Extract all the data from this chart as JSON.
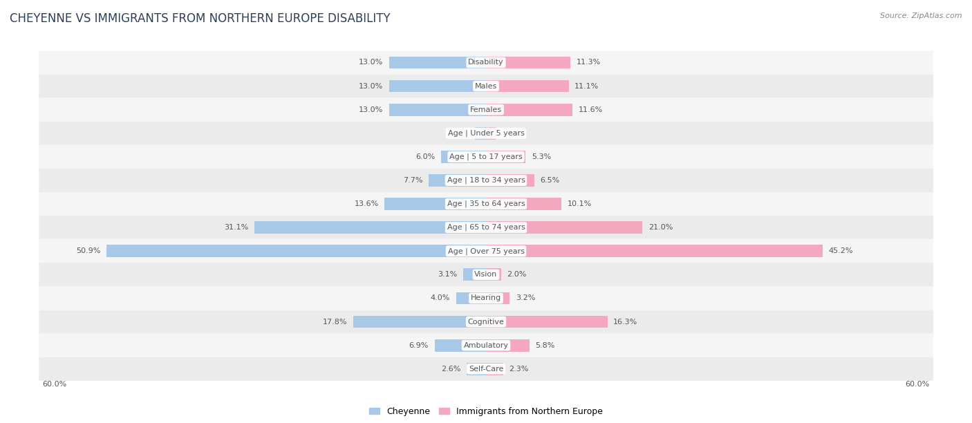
{
  "title": "CHEYENNE VS IMMIGRANTS FROM NORTHERN EUROPE DISABILITY",
  "source": "Source: ZipAtlas.com",
  "categories": [
    "Disability",
    "Males",
    "Females",
    "Age | Under 5 years",
    "Age | 5 to 17 years",
    "Age | 18 to 34 years",
    "Age | 35 to 64 years",
    "Age | 65 to 74 years",
    "Age | Over 75 years",
    "Vision",
    "Hearing",
    "Cognitive",
    "Ambulatory",
    "Self-Care"
  ],
  "cheyenne_values": [
    13.0,
    13.0,
    13.0,
    1.5,
    6.0,
    7.7,
    13.6,
    31.1,
    50.9,
    3.1,
    4.0,
    17.8,
    6.9,
    2.6
  ],
  "immigrant_values": [
    11.3,
    11.1,
    11.6,
    1.3,
    5.3,
    6.5,
    10.1,
    21.0,
    45.2,
    2.0,
    3.2,
    16.3,
    5.8,
    2.3
  ],
  "cheyenne_color": "#a8c8e8",
  "immigrant_color": "#f4a8c0",
  "bg_color": "#ffffff",
  "row_colors": [
    "#f5f5f5",
    "#ebebeb"
  ],
  "xlim": 60.0,
  "bar_height": 0.52,
  "value_color": "#555555",
  "label_color": "#555555",
  "title_color": "#2e4057",
  "source_color": "#888888",
  "title_fontsize": 12,
  "value_fontsize": 8,
  "category_fontsize": 8,
  "legend_labels": [
    "Cheyenne",
    "Immigrants from Northern Europe"
  ]
}
